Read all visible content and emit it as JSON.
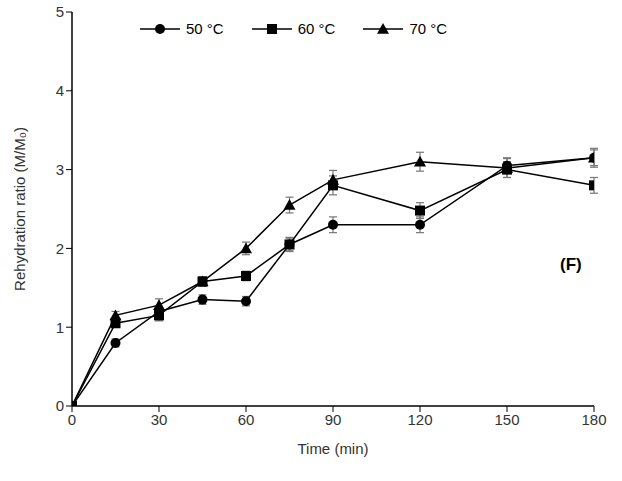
{
  "chart_data": {
    "type": "line",
    "x_label": "Time (min)",
    "y_label": "Rehydration ratio (M/M₀)",
    "x": [
      0,
      15,
      30,
      45,
      60,
      75,
      90,
      120,
      150,
      180
    ],
    "series": [
      {
        "name": "50 °C",
        "color": "#000000",
        "marker": "circle",
        "line_style": "solid",
        "values": [
          0,
          0.8,
          1.2,
          1.35,
          1.33,
          2.05,
          2.3,
          2.3,
          3.05,
          3.15
        ],
        "errors": [
          0,
          0.05,
          0.06,
          0.06,
          0.06,
          0.08,
          0.1,
          0.1,
          0.1,
          0.1
        ]
      },
      {
        "name": "60 °C",
        "color": "#000000",
        "marker": "square",
        "line_style": "solid",
        "values": [
          0,
          1.05,
          1.15,
          1.58,
          1.65,
          2.05,
          2.8,
          2.48,
          3.0,
          2.8
        ],
        "errors": [
          0,
          0.05,
          0.07,
          0.06,
          0.06,
          0.09,
          0.12,
          0.1,
          0.1,
          0.1
        ]
      },
      {
        "name": "70 °C",
        "color": "#000000",
        "marker": "triangle",
        "line_style": "solid",
        "values": [
          0,
          1.15,
          1.28,
          1.58,
          2.0,
          2.55,
          2.87,
          3.1,
          3.02,
          3.15
        ],
        "errors": [
          0,
          0.05,
          0.08,
          0.06,
          0.08,
          0.1,
          0.12,
          0.12,
          0.12,
          0.12
        ]
      }
    ],
    "xlim": [
      0,
      180
    ],
    "xticks": [
      0,
      30,
      60,
      90,
      120,
      150,
      180
    ],
    "ylim": [
      0,
      5
    ],
    "yticks": [
      0,
      1,
      2,
      3,
      4,
      5
    ],
    "grid": false,
    "legend": "top",
    "annotations": [
      {
        "text": "(F)"
      }
    ]
  }
}
